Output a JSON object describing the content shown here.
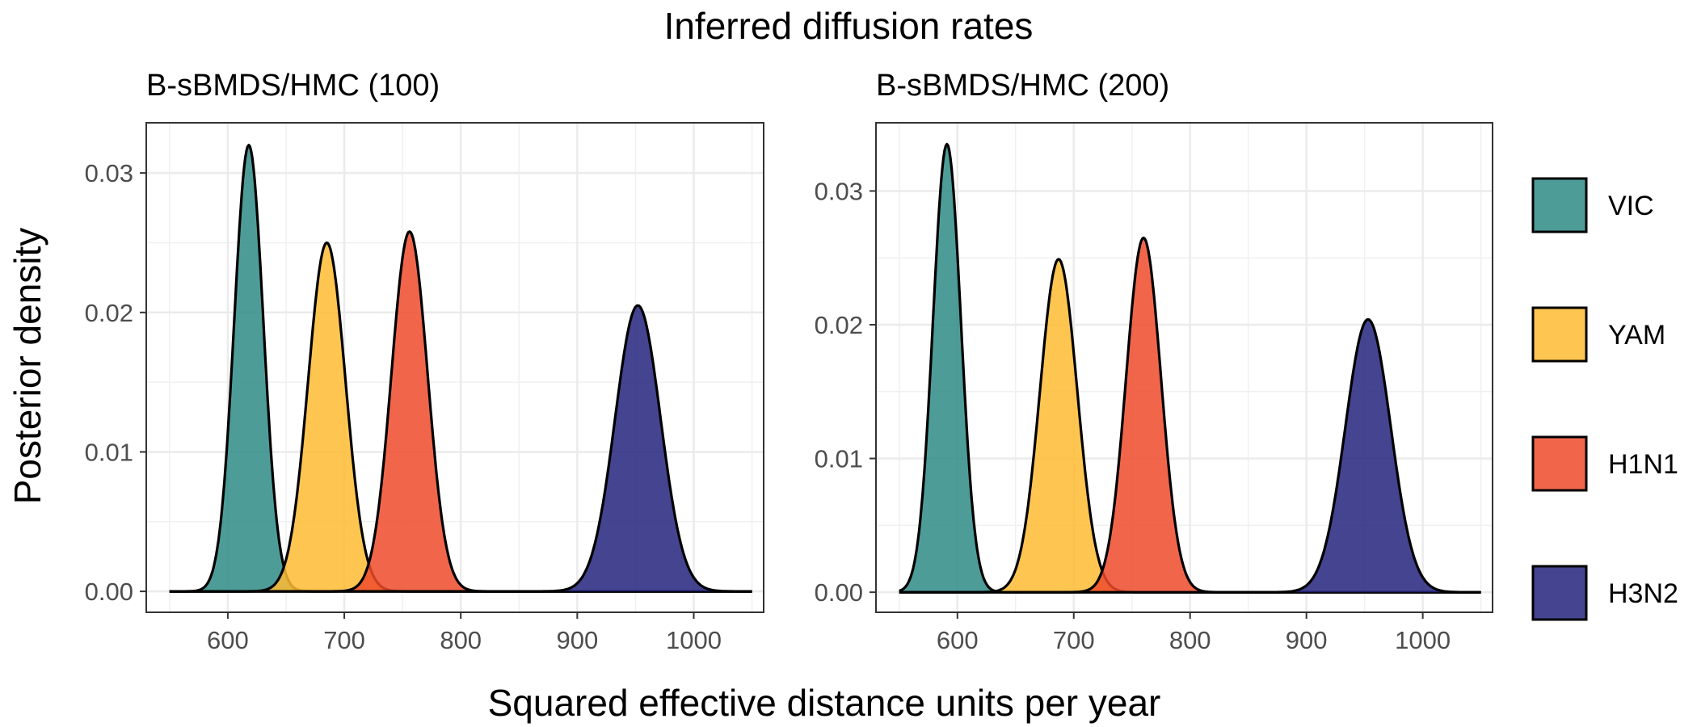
{
  "title": "Inferred diffusion rates",
  "xlabel": "Squared effective distance units per year",
  "ylabel": "Posterior density",
  "legend": [
    {
      "name": "VIC",
      "color": "#2E8B86"
    },
    {
      "name": "YAM",
      "color": "#FFBB33"
    },
    {
      "name": "H1N1",
      "color": "#EE4B2B"
    },
    {
      "name": "H3N2",
      "color": "#23237E"
    }
  ],
  "chart_data": [
    {
      "type": "area",
      "title": "B-sBMDS/HMC (100)",
      "xlim": [
        530,
        1060
      ],
      "ylim": [
        -0.0015,
        0.0336
      ],
      "x_ticks": [
        600,
        700,
        800,
        900,
        1000
      ],
      "x_tick_labels": [
        "600",
        "700",
        "800",
        "900",
        "1000"
      ],
      "y_ticks": [
        0,
        0.01,
        0.02,
        0.03
      ],
      "y_tick_labels": [
        "0.00",
        "0.01",
        "0.02",
        "0.03"
      ],
      "grid": true,
      "x_range": [
        550,
        1050
      ],
      "series": [
        {
          "name": "VIC",
          "peak_x": 618,
          "peak_density": 0.032,
          "sd": 12.5
        },
        {
          "name": "YAM",
          "peak_x": 685,
          "peak_density": 0.025,
          "sd": 16
        },
        {
          "name": "H1N1",
          "peak_x": 756,
          "peak_density": 0.0258,
          "sd": 15.5
        },
        {
          "name": "H3N2",
          "peak_x": 952,
          "peak_density": 0.0205,
          "sd": 19.5
        }
      ]
    },
    {
      "type": "area",
      "title": "B-sBMDS/HMC (200)",
      "xlim": [
        530,
        1060
      ],
      "ylim": [
        -0.0015,
        0.0351
      ],
      "x_ticks": [
        600,
        700,
        800,
        900,
        1000
      ],
      "x_tick_labels": [
        "600",
        "700",
        "800",
        "900",
        "1000"
      ],
      "y_ticks": [
        0,
        0.01,
        0.02,
        0.03
      ],
      "y_tick_labels": [
        "0.00",
        "0.01",
        "0.02",
        "0.03"
      ],
      "grid": true,
      "x_range": [
        550,
        1050
      ],
      "series": [
        {
          "name": "VIC",
          "peak_x": 591,
          "peak_density": 0.0335,
          "sd": 12
        },
        {
          "name": "YAM",
          "peak_x": 687,
          "peak_density": 0.0249,
          "sd": 16
        },
        {
          "name": "H1N1",
          "peak_x": 760,
          "peak_density": 0.0265,
          "sd": 15
        },
        {
          "name": "H3N2",
          "peak_x": 953,
          "peak_density": 0.0204,
          "sd": 19.5
        }
      ]
    }
  ]
}
